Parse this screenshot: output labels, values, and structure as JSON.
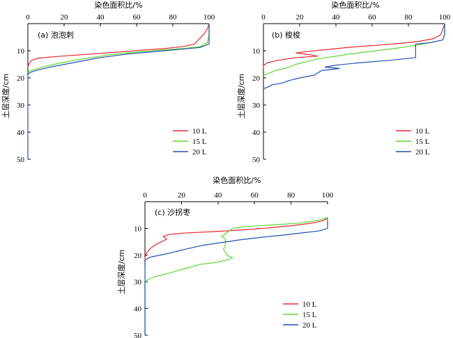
{
  "chart_data": [
    {
      "type": "line",
      "title": "(a) 泡泡刺",
      "xlabel": "染色面积比/%",
      "ylabel": "土层深度/cm",
      "xlim": [
        0,
        100
      ],
      "ylim": [
        0,
        50
      ],
      "x_ticks": [
        "0",
        "20",
        "40",
        "60",
        "80",
        "100"
      ],
      "y_ticks": [
        "10",
        "20",
        "30",
        "40",
        "50"
      ],
      "legend_position": "bottom-right",
      "series": [
        {
          "name": "10 L",
          "color": "#e8262a",
          "points": [
            [
              100,
              0
            ],
            [
              99,
              2
            ],
            [
              97,
              4
            ],
            [
              94,
              6
            ],
            [
              92,
              7.5
            ],
            [
              85,
              8.5
            ],
            [
              75,
              9.2
            ],
            [
              62,
              9.8
            ],
            [
              50,
              10.5
            ],
            [
              35,
              11.2
            ],
            [
              18,
              12
            ],
            [
              6,
              12.7
            ],
            [
              2,
              13.5
            ],
            [
              0.5,
              15
            ],
            [
              0,
              16
            ]
          ]
        },
        {
          "name": "15 L",
          "color": "#5ad62e",
          "points": [
            [
              100,
              0
            ],
            [
              100,
              4
            ],
            [
              99,
              7
            ],
            [
              95,
              8.5
            ],
            [
              85,
              9.2
            ],
            [
              72,
              9.8
            ],
            [
              60,
              10.5
            ],
            [
              45,
              11.5
            ],
            [
              30,
              13
            ],
            [
              18,
              14.5
            ],
            [
              8,
              16
            ],
            [
              3,
              17
            ],
            [
              0.5,
              17.6
            ],
            [
              0,
              18
            ]
          ]
        },
        {
          "name": "20 L",
          "color": "#1f4fb5",
          "points": [
            [
              100,
              0
            ],
            [
              100,
              3
            ],
            [
              100,
              7.5
            ],
            [
              95,
              8.8
            ],
            [
              82,
              9.6
            ],
            [
              68,
              10.4
            ],
            [
              55,
              11.2
            ],
            [
              40,
              12.5
            ],
            [
              28,
              14
            ],
            [
              14,
              15.8
            ],
            [
              6,
              17
            ],
            [
              2,
              17.8
            ],
            [
              0.3,
              18.4
            ],
            [
              0,
              19
            ],
            [
              0,
              28
            ],
            [
              0,
              50
            ]
          ]
        }
      ]
    },
    {
      "type": "line",
      "title": "(b) 梭梭",
      "xlabel": "染色面积比/%",
      "ylabel": "土层深度/cm",
      "xlim": [
        0,
        100
      ],
      "ylim": [
        0,
        50
      ],
      "x_ticks": [
        "0",
        "20",
        "40",
        "60",
        "80",
        "100"
      ],
      "y_ticks": [
        "10",
        "20",
        "30",
        "40",
        "50"
      ],
      "legend_position": "bottom-right",
      "series": [
        {
          "name": "10 L",
          "color": "#e8262a",
          "points": [
            [
              100,
              0
            ],
            [
              99,
              2
            ],
            [
              98,
              4
            ],
            [
              94,
              5.5
            ],
            [
              86,
              6.5
            ],
            [
              75,
              7.3
            ],
            [
              62,
              8
            ],
            [
              48,
              8.7
            ],
            [
              36,
              9.5
            ],
            [
              25,
              10.2
            ],
            [
              18,
              10.8
            ],
            [
              26,
              11.5
            ],
            [
              30,
              12
            ],
            [
              18,
              12.5
            ],
            [
              8,
              13.5
            ],
            [
              2,
              14.5
            ],
            [
              0,
              15.5
            ],
            [
              0,
              16.5
            ]
          ]
        },
        {
          "name": "15 L",
          "color": "#5ad62e",
          "points": [
            [
              100,
              0
            ],
            [
              100,
              4
            ],
            [
              99,
              6
            ],
            [
              92,
              7
            ],
            [
              84,
              8
            ],
            [
              74,
              9
            ],
            [
              62,
              10
            ],
            [
              50,
              11
            ],
            [
              40,
              12
            ],
            [
              30,
              13
            ],
            [
              24,
              14
            ],
            [
              18,
              15
            ],
            [
              12,
              16.5
            ],
            [
              8,
              17
            ],
            [
              4,
              18
            ],
            [
              0,
              19
            ]
          ]
        },
        {
          "name": "20 L",
          "color": "#1f4fb5",
          "points": [
            [
              100,
              0
            ],
            [
              100,
              4
            ],
            [
              99,
              6
            ],
            [
              92,
              7
            ],
            [
              84,
              7.5
            ],
            [
              84,
              12.5
            ],
            [
              70,
              13.5
            ],
            [
              52,
              14.5
            ],
            [
              40,
              15.3
            ],
            [
              34,
              16
            ],
            [
              42,
              16.5
            ],
            [
              32,
              17.3
            ],
            [
              28,
              19
            ],
            [
              20,
              20
            ],
            [
              14,
              21
            ],
            [
              10,
              22
            ],
            [
              5,
              22.5
            ],
            [
              2,
              23.5
            ],
            [
              0,
              24
            ]
          ]
        }
      ]
    },
    {
      "type": "line",
      "title": "(c) 沙拐枣",
      "xlabel": "染色面积比/%",
      "ylabel": "土层深度/cm",
      "xlim": [
        0,
        100
      ],
      "ylim": [
        0,
        50
      ],
      "x_ticks": [
        "0",
        "20",
        "40",
        "60",
        "80",
        "100"
      ],
      "y_ticks": [
        "10",
        "20",
        "30",
        "40",
        "50"
      ],
      "legend_position": "bottom-right",
      "series": [
        {
          "name": "10 L",
          "color": "#e8262a",
          "points": [
            [
              100,
              6
            ],
            [
              98,
              7
            ],
            [
              92,
              8
            ],
            [
              80,
              9
            ],
            [
              65,
              10
            ],
            [
              50,
              10.7
            ],
            [
              35,
              11.3
            ],
            [
              20,
              11.8
            ],
            [
              13,
              12.3
            ],
            [
              10,
              13
            ],
            [
              12,
              14
            ],
            [
              9,
              15
            ],
            [
              6,
              16
            ],
            [
              3,
              17.5
            ],
            [
              1,
              19
            ],
            [
              0,
              21
            ],
            [
              0,
              24
            ]
          ]
        },
        {
          "name": "15 L",
          "color": "#5ad62e",
          "points": [
            [
              100,
              6
            ],
            [
              95,
              7
            ],
            [
              85,
              8
            ],
            [
              70,
              8.7
            ],
            [
              55,
              9.3
            ],
            [
              48,
              10
            ],
            [
              46,
              11
            ],
            [
              44,
              12
            ],
            [
              42,
              13
            ],
            [
              44,
              14
            ],
            [
              44,
              16
            ],
            [
              43,
              18
            ],
            [
              45,
              20
            ],
            [
              48,
              21
            ],
            [
              44,
              22
            ],
            [
              38,
              22.8
            ],
            [
              30,
              23.5
            ],
            [
              25,
              24.5
            ],
            [
              22,
              25
            ],
            [
              17,
              26
            ],
            [
              12,
              27
            ],
            [
              6,
              28
            ],
            [
              2,
              29
            ],
            [
              0,
              30
            ],
            [
              0,
              50
            ]
          ]
        },
        {
          "name": "20 L",
          "color": "#1f4fb5",
          "points": [
            [
              100,
              6
            ],
            [
              100,
              10
            ],
            [
              95,
              11
            ],
            [
              86,
              11.7
            ],
            [
              76,
              12.5
            ],
            [
              64,
              13.3
            ],
            [
              52,
              14.3
            ],
            [
              40,
              15.5
            ],
            [
              32,
              16.3
            ],
            [
              24,
              17.5
            ],
            [
              18,
              18.5
            ],
            [
              12,
              19.5
            ],
            [
              6,
              20.3
            ],
            [
              2,
              21
            ],
            [
              0,
              22
            ],
            [
              0,
              50
            ]
          ]
        }
      ]
    }
  ]
}
